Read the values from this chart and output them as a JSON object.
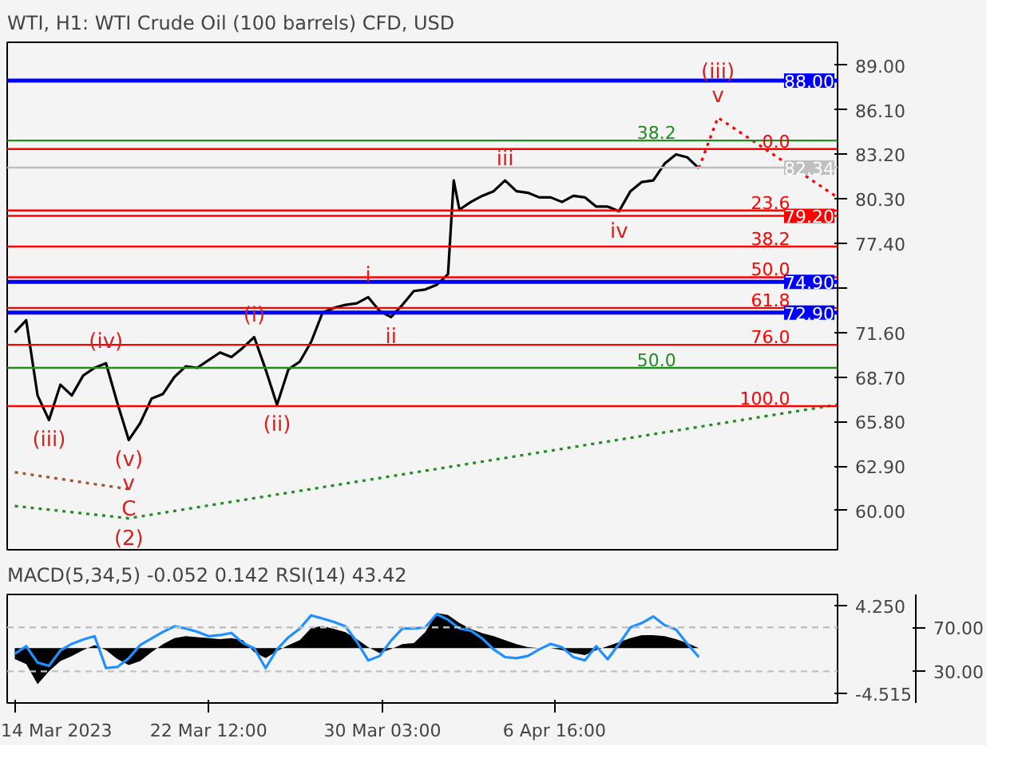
{
  "chart_data": [
    {
      "type": "line",
      "title": "WTI, H1:  WTI Crude Oil (100 barrels) CFD, USD",
      "x": [
        "2023-03-14T00:00",
        "2023-03-14T12:00",
        "2023-03-15T00:00",
        "2023-03-15T12:00",
        "2023-03-16T00:00",
        "2023-03-16T12:00",
        "2023-03-17T00:00",
        "2023-03-17T12:00",
        "2023-03-18T00:00",
        "2023-03-18T12:00",
        "2023-03-19T00:00",
        "2023-03-19T12:00",
        "2023-03-20T00:00",
        "2023-03-20T12:00",
        "2023-03-21T00:00",
        "2023-03-21T12:00",
        "2023-03-22T00:00",
        "2023-03-22T12:00",
        "2023-03-23T00:00",
        "2023-03-23T12:00",
        "2023-03-24T00:00",
        "2023-03-24T12:00",
        "2023-03-25T00:00",
        "2023-03-25T12:00",
        "2023-03-26T00:00",
        "2023-03-26T12:00",
        "2023-03-27T00:00",
        "2023-03-27T12:00",
        "2023-03-28T00:00",
        "2023-03-28T12:00",
        "2023-03-29T00:00",
        "2023-03-29T12:00",
        "2023-03-30T00:00",
        "2023-03-30T12:00",
        "2023-03-31T00:00",
        "2023-03-31T12:00",
        "2023-04-01T00:00",
        "2023-04-01T12:00",
        "2023-04-02T00:00",
        "2023-04-02T06:00",
        "2023-04-02T12:00",
        "2023-04-03T00:00",
        "2023-04-03T12:00",
        "2023-04-04T00:00",
        "2023-04-04T12:00",
        "2023-04-05T00:00",
        "2023-04-05T12:00",
        "2023-04-06T00:00",
        "2023-04-06T12:00",
        "2023-04-07T00:00",
        "2023-04-07T12:00",
        "2023-04-08T00:00",
        "2023-04-08T12:00",
        "2023-04-09T00:00",
        "2023-04-09T12:00",
        "2023-04-10T00:00",
        "2023-04-10T12:00",
        "2023-04-11T00:00",
        "2023-04-11T12:00",
        "2023-04-12T00:00",
        "2023-04-12T12:00",
        "2023-04-13T00:00"
      ],
      "series": [
        {
          "color": "#000000",
          "values": [
            71.6,
            72.4,
            67.5,
            65.9,
            68.2,
            67.5,
            68.8,
            69.3,
            69.6,
            67.0,
            64.6,
            65.7,
            67.3,
            67.6,
            68.7,
            69.4,
            69.3,
            69.8,
            70.3,
            70.0,
            70.6,
            71.3,
            69.2,
            66.9,
            69.2,
            69.7,
            71.0,
            72.9,
            73.2,
            73.4,
            73.5,
            73.9,
            73.0,
            72.6,
            73.4,
            74.3,
            74.4,
            74.7,
            75.4,
            81.5,
            79.6,
            80.1,
            80.5,
            80.8,
            81.5,
            80.8,
            80.7,
            80.4,
            80.4,
            80.1,
            80.5,
            80.4,
            79.8,
            79.8,
            79.5,
            80.8,
            81.4,
            81.5,
            82.6,
            83.2,
            83.0,
            82.3
          ]
        },
        {
          "color": "#ff0000",
          "line_style": "dotted",
          "x": [
            "2023-04-13T00:00",
            "2023-04-13T20:00",
            "2023-04-19T02:00"
          ],
          "values": [
            82.3,
            85.6,
            80.4
          ]
        },
        {
          "color": "#228b22",
          "line_style": "dotted",
          "x": [
            "2023-03-14T00:00",
            "2023-03-19T00:00",
            "2023-04-19T02:00"
          ],
          "values": [
            60.3,
            59.5,
            66.9
          ]
        },
        {
          "color": "#a0522d",
          "line_style": "dotted",
          "x": [
            "2023-03-14T00:00",
            "2023-03-19T00:00"
          ],
          "values": [
            62.5,
            61.4
          ]
        }
      ],
      "xlim": [
        "2023-03-13T16:00",
        "2023-04-19T02:00"
      ],
      "ylim": [
        57.45,
        90.5
      ],
      "yticks": [
        {
          "value": 60.0,
          "label": "60.00"
        },
        {
          "value": 62.9,
          "label": "62.90"
        },
        {
          "value": 65.8,
          "label": "65.80"
        },
        {
          "value": 68.7,
          "label": "68.70"
        },
        {
          "value": 71.6,
          "label": "71.60"
        },
        {
          "value": 74.5,
          "label": null
        },
        {
          "value": 77.4,
          "label": "77.40"
        },
        {
          "value": 80.3,
          "label": "80.30"
        },
        {
          "value": 83.2,
          "label": "83.20"
        },
        {
          "value": 86.1,
          "label": "86.10"
        },
        {
          "value": 89.0,
          "label": "89.00"
        }
      ],
      "tick_labels": "y",
      "grid": false,
      "ref_lines": [
        {
          "axis": "y",
          "value": 88.0,
          "label": "88.00",
          "color": "#0000ff"
        },
        {
          "axis": "y",
          "value": 84.1,
          "color": "#228b22"
        },
        {
          "axis": "y",
          "value": 83.55,
          "color": "#ff0000"
        },
        {
          "axis": "y",
          "value": 82.34,
          "label": "82.34",
          "color": "#c0c0c0"
        },
        {
          "axis": "y",
          "value": 79.55,
          "color": "#ff0000"
        },
        {
          "axis": "y",
          "value": 79.2,
          "label": "79.20",
          "color": "#ff0000"
        },
        {
          "axis": "y",
          "value": 77.2,
          "color": "#ff0000"
        },
        {
          "axis": "y",
          "value": 75.2,
          "color": "#ff0000"
        },
        {
          "axis": "y",
          "value": 74.9,
          "label": "74.90",
          "color": "#0000ff"
        },
        {
          "axis": "y",
          "value": 73.2,
          "color": "#ff0000"
        },
        {
          "axis": "y",
          "value": 72.9,
          "label": "72.90",
          "color": "#0000ff"
        },
        {
          "axis": "y",
          "value": 70.8,
          "color": "#ff0000"
        },
        {
          "axis": "y",
          "value": 69.3,
          "color": "#228b22"
        },
        {
          "axis": "y",
          "value": 66.8,
          "color": "#ff0000"
        }
      ],
      "annotations": [
        {
          "text": "(iii)",
          "x": "2023-03-15T12:00",
          "y": 65.9
        },
        {
          "text": "(iv)",
          "x": "2023-03-18T00:00",
          "y": 69.6
        },
        {
          "text": "(v)",
          "x": "2023-03-19T00:00",
          "y": 64.6
        },
        {
          "text": "v",
          "x": "2023-03-19T00:00",
          "y": 64.6
        },
        {
          "text": "C",
          "x": "2023-03-19T00:00",
          "y": 61.4
        },
        {
          "text": "(2)",
          "x": "2023-03-19T00:00",
          "y": 59.5
        },
        {
          "text": "(i)",
          "x": "2023-03-24T12:00",
          "y": 71.3
        },
        {
          "text": "(ii)",
          "x": "2023-03-25T12:00",
          "y": 66.9
        },
        {
          "text": "i",
          "x": "2023-03-29T12:00",
          "y": 73.9
        },
        {
          "text": "ii",
          "x": "2023-03-30T12:00",
          "y": 72.6
        },
        {
          "text": "iii",
          "x": "2023-04-04T12:00",
          "y": 81.5
        },
        {
          "text": "iv",
          "x": "2023-04-09T12:00",
          "y": 79.5
        },
        {
          "text": "v",
          "x": "2023-04-13T20:00",
          "y": 85.6
        },
        {
          "text": "(iii)",
          "x": "2023-04-13T20:00",
          "y": 85.6
        },
        {
          "text": "38.2",
          "x": "2023-04-12T00:00",
          "y": 84.1
        },
        {
          "text": "0.0",
          "x": "2023-04-17T00:00",
          "y": 83.55
        },
        {
          "text": "23.6",
          "x": "2023-04-17T00:00",
          "y": 79.55
        },
        {
          "text": "38.2",
          "x": "2023-04-17T00:00",
          "y": 77.2
        },
        {
          "text": "50.0",
          "x": "2023-04-17T00:00",
          "y": 75.2
        },
        {
          "text": "61.8",
          "x": "2023-04-17T00:00",
          "y": 73.2
        },
        {
          "text": "76.0",
          "x": "2023-04-17T00:00",
          "y": 70.8
        },
        {
          "text": "50.0",
          "x": "2023-04-12T00:00",
          "y": 69.3
        },
        {
          "text": "100.0",
          "x": "2023-04-17T00:00",
          "y": 66.8
        }
      ]
    },
    {
      "type": "area",
      "title": "MACD(5,34,5) -0.052 0.142 RSI(14) 43.42",
      "x": [
        "2023-03-14T00:00",
        "2023-03-14T12:00",
        "2023-03-15T00:00",
        "2023-03-15T12:00",
        "2023-03-16T00:00",
        "2023-03-16T12:00",
        "2023-03-17T00:00",
        "2023-03-17T12:00",
        "2023-03-18T00:00",
        "2023-03-18T12:00",
        "2023-03-19T00:00",
        "2023-03-19T12:00",
        "2023-03-20T00:00",
        "2023-03-20T12:00",
        "2023-03-21T00:00",
        "2023-03-21T12:00",
        "2023-03-22T00:00",
        "2023-03-22T12:00",
        "2023-03-23T00:00",
        "2023-03-23T12:00",
        "2023-03-24T00:00",
        "2023-03-24T12:00",
        "2023-03-25T00:00",
        "2023-03-25T12:00",
        "2023-03-26T00:00",
        "2023-03-26T12:00",
        "2023-03-27T00:00",
        "2023-03-27T12:00",
        "2023-03-28T00:00",
        "2023-03-28T12:00",
        "2023-03-29T00:00",
        "2023-03-29T12:00",
        "2023-03-30T00:00",
        "2023-03-30T12:00",
        "2023-03-31T00:00",
        "2023-03-31T12:00",
        "2023-04-01T00:00",
        "2023-04-01T12:00",
        "2023-04-02T00:00",
        "2023-04-02T12:00",
        "2023-04-03T00:00",
        "2023-04-03T12:00",
        "2023-04-04T00:00",
        "2023-04-04T12:00",
        "2023-04-05T00:00",
        "2023-04-05T12:00",
        "2023-04-06T00:00",
        "2023-04-06T12:00",
        "2023-04-07T00:00",
        "2023-04-07T12:00",
        "2023-04-08T00:00",
        "2023-04-08T12:00",
        "2023-04-09T00:00",
        "2023-04-09T12:00",
        "2023-04-10T00:00",
        "2023-04-10T12:00",
        "2023-04-11T00:00",
        "2023-04-11T12:00",
        "2023-04-12T00:00",
        "2023-04-12T12:00",
        "2023-04-13T00:00"
      ],
      "series": [
        {
          "type": "area",
          "color": "#000000",
          "values": [
            -1.1,
            -1.6,
            -3.6,
            -2.3,
            -1.3,
            -0.8,
            -0.2,
            0.3,
            -0.2,
            -1.1,
            -1.7,
            -1.3,
            -0.4,
            0.4,
            1.0,
            1.2,
            1.1,
            1.0,
            0.9,
            1.0,
            0.8,
            -0.4,
            -1.0,
            -0.3,
            0.3,
            0.8,
            2.0,
            2.2,
            1.9,
            1.6,
            0.9,
            0.1,
            -0.5,
            -0.1,
            0.4,
            0.5,
            1.6,
            3.5,
            3.3,
            2.5,
            1.9,
            1.5,
            1.2,
            0.8,
            0.4,
            0.1,
            0,
            0,
            -0.2,
            -0.5,
            -0.7,
            -0.2,
            0.2,
            0.6,
            1.0,
            1.3,
            1.3,
            1.2,
            0.9,
            0.5,
            0
          ]
        },
        {
          "type": "line",
          "axis": "y2",
          "color": "#1e90ff",
          "values": [
            46,
            53,
            38,
            35,
            49,
            55,
            59,
            62,
            33,
            34,
            42,
            54,
            60,
            66,
            71,
            69,
            66,
            62,
            63,
            65,
            56,
            51,
            33,
            50,
            61,
            69,
            81,
            78,
            75,
            71,
            57,
            40,
            44,
            58,
            69,
            69,
            70,
            82,
            77,
            69,
            67,
            60,
            50,
            43,
            42,
            44,
            50,
            55,
            52,
            43,
            40,
            53,
            41,
            55,
            70,
            74,
            80,
            72,
            68,
            55,
            43
          ]
        }
      ],
      "xlim": [
        "2023-03-13T16:00",
        "2023-04-19T02:00"
      ],
      "ylim": [
        -5.47,
        5.35
      ],
      "y2lim": [
        1.25,
        100
      ],
      "xticks": [
        {
          "value": "2023-03-14T00:00",
          "label": "14 Mar 2023"
        },
        {
          "value": "2023-03-22T12:00",
          "label": "22 Mar 12:00"
        },
        {
          "value": "2023-03-30T03:00",
          "label": "30 Mar 03:00"
        },
        {
          "value": "2023-04-06T16:00",
          "label": "6 Apr 16:00"
        }
      ],
      "yticks": [
        {
          "value": 4.25,
          "label": "4.250"
        },
        {
          "value": -4.515,
          "label": "-4.515"
        }
      ],
      "y2ticks": [
        {
          "value": 70,
          "label": "70.00"
        },
        {
          "value": 30,
          "label": "30.00"
        }
      ],
      "grid": false,
      "ref_lines": [
        {
          "axis": "y2",
          "value": 70,
          "color": "#c0c0c0",
          "line_style": "dashed"
        },
        {
          "axis": "y2",
          "value": 30,
          "color": "#c0c0c0",
          "line_style": "dashed"
        }
      ]
    }
  ]
}
